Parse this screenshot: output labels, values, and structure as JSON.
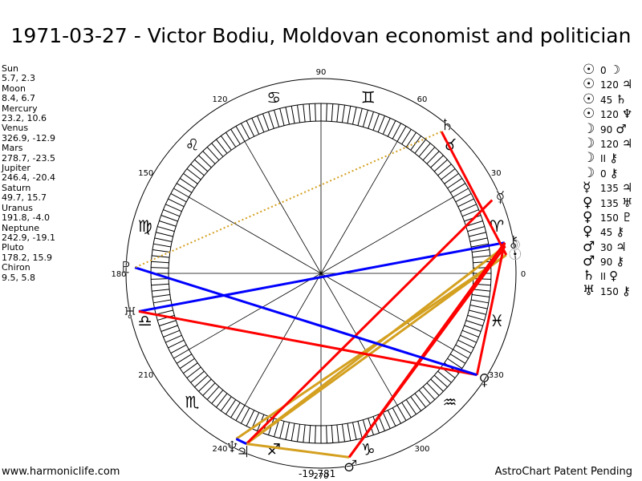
{
  "title": "1971-03-27 - Victor Bodiu, Moldovan economist and politician",
  "positions": [
    {
      "name": "Sun",
      "coords": "5.7, 2.3"
    },
    {
      "name": "Moon",
      "coords": "8.4, 6.7"
    },
    {
      "name": "Mercury",
      "coords": "23.2, 10.6"
    },
    {
      "name": "Venus",
      "coords": "326.9, -12.9"
    },
    {
      "name": "Mars",
      "coords": "278.7, -23.5"
    },
    {
      "name": "Jupiter",
      "coords": "246.4, -20.4"
    },
    {
      "name": "Saturn",
      "coords": "49.7, 15.7"
    },
    {
      "name": "Uranus",
      "coords": "191.8, -4.0"
    },
    {
      "name": "Neptune",
      "coords": "242.9, -19.1"
    },
    {
      "name": "Pluto",
      "coords": "178.2, 15.9"
    },
    {
      "name": "Chiron",
      "coords": "9.5, 5.8"
    }
  ],
  "aspects": [
    {
      "p1": "☉",
      "value": "0",
      "p2": "☽"
    },
    {
      "p1": "☉",
      "value": "120",
      "p2": "♃"
    },
    {
      "p1": "☉",
      "value": "45",
      "p2": "♄"
    },
    {
      "p1": "☉",
      "value": "120",
      "p2": "♆"
    },
    {
      "p1": "☽",
      "value": "90",
      "p2": "♂"
    },
    {
      "p1": "☽",
      "value": "120",
      "p2": "♃"
    },
    {
      "p1": "☽",
      "value": "II",
      "p2": "⚷"
    },
    {
      "p1": "☽",
      "value": "0",
      "p2": "⚷"
    },
    {
      "p1": "☿",
      "value": "135",
      "p2": "♃"
    },
    {
      "p1": "♀",
      "value": "135",
      "p2": "♅"
    },
    {
      "p1": "♀",
      "value": "150",
      "p2": "♇"
    },
    {
      "p1": "♀",
      "value": "45",
      "p2": "⚷"
    },
    {
      "p1": "♂",
      "value": "30",
      "p2": "♃"
    },
    {
      "p1": "♂",
      "value": "90",
      "p2": "⚷"
    },
    {
      "p1": "♄",
      "value": "II",
      "p2": "♀"
    },
    {
      "p1": "♅",
      "value": "150",
      "p2": "⚷"
    }
  ],
  "wheel": {
    "degree_labels": [
      "0",
      "30",
      "60",
      "90",
      "120",
      "150",
      "180",
      "210",
      "240",
      "270",
      "300",
      "330"
    ],
    "zodiac_signs": [
      {
        "glyph": "♈",
        "name": "aries"
      },
      {
        "glyph": "♉",
        "name": "taurus"
      },
      {
        "glyph": "♊",
        "name": "gemini"
      },
      {
        "glyph": "♋",
        "name": "cancer"
      },
      {
        "glyph": "♌",
        "name": "leo"
      },
      {
        "glyph": "♍",
        "name": "virgo"
      },
      {
        "glyph": "♎",
        "name": "libra"
      },
      {
        "glyph": "♏",
        "name": "scorpio"
      },
      {
        "glyph": "♐",
        "name": "sagittarius"
      },
      {
        "glyph": "♑",
        "name": "capricorn"
      },
      {
        "glyph": "♒",
        "name": "aquarius"
      },
      {
        "glyph": "♓",
        "name": "pisces"
      }
    ],
    "planets": [
      {
        "name": "sun",
        "glyph": "☉",
        "lon": 5.7
      },
      {
        "name": "moon",
        "glyph": "☽",
        "lon": 8.4
      },
      {
        "name": "mercury",
        "glyph": "☿",
        "lon": 23.2
      },
      {
        "name": "venus",
        "glyph": "♀",
        "lon": 326.9
      },
      {
        "name": "mars",
        "glyph": "♂",
        "lon": 278.7
      },
      {
        "name": "jupiter",
        "glyph": "♃",
        "lon": 246.4
      },
      {
        "name": "saturn",
        "glyph": "♄",
        "lon": 49.7
      },
      {
        "name": "uranus",
        "glyph": "♅",
        "lon": 191.8
      },
      {
        "name": "neptune",
        "glyph": "♆",
        "lon": 242.9
      },
      {
        "name": "pluto",
        "glyph": "♇",
        "lon": 178.2
      },
      {
        "name": "chiron",
        "glyph": "⚷",
        "lon": 9.5
      }
    ],
    "aspect_lines": [
      {
        "a": "sun",
        "b": "jupiter",
        "kind": "trine"
      },
      {
        "a": "sun",
        "b": "neptune",
        "kind": "trine"
      },
      {
        "a": "moon",
        "b": "jupiter",
        "kind": "trine"
      },
      {
        "a": "uranus",
        "b": "chiron",
        "kind": "quincunx"
      },
      {
        "a": "sun",
        "b": "saturn",
        "kind": "semisquare"
      },
      {
        "a": "moon",
        "b": "mars",
        "kind": "square"
      },
      {
        "a": "mercury",
        "b": "jupiter",
        "kind": "sesquisquare"
      },
      {
        "a": "venus",
        "b": "uranus",
        "kind": "sesquisquare"
      },
      {
        "a": "venus",
        "b": "chiron",
        "kind": "semisquare"
      },
      {
        "a": "mars",
        "b": "jupiter",
        "kind": "semisextile"
      },
      {
        "a": "mars",
        "b": "chiron",
        "kind": "square"
      },
      {
        "a": "venus",
        "b": "pluto",
        "kind": "quincunx"
      },
      {
        "a": "jupiter",
        "b": "neptune",
        "kind": "conjunction"
      },
      {
        "a": "saturn",
        "b": "pluto",
        "kind": "semisextile"
      }
    ],
    "aspect_colors": {
      "trine": "#d4a020",
      "sesquisquare": "#ff0000",
      "square": "#ff0000",
      "semisquare": "#ff0000",
      "quincunx": "#0000ff",
      "semisextile": "#d4a020",
      "conjunction": "#0000ff"
    }
  },
  "footer": {
    "left": "www.harmoniclife.com",
    "middle": "-19,781",
    "right": "AstroChart Patent Pending"
  }
}
